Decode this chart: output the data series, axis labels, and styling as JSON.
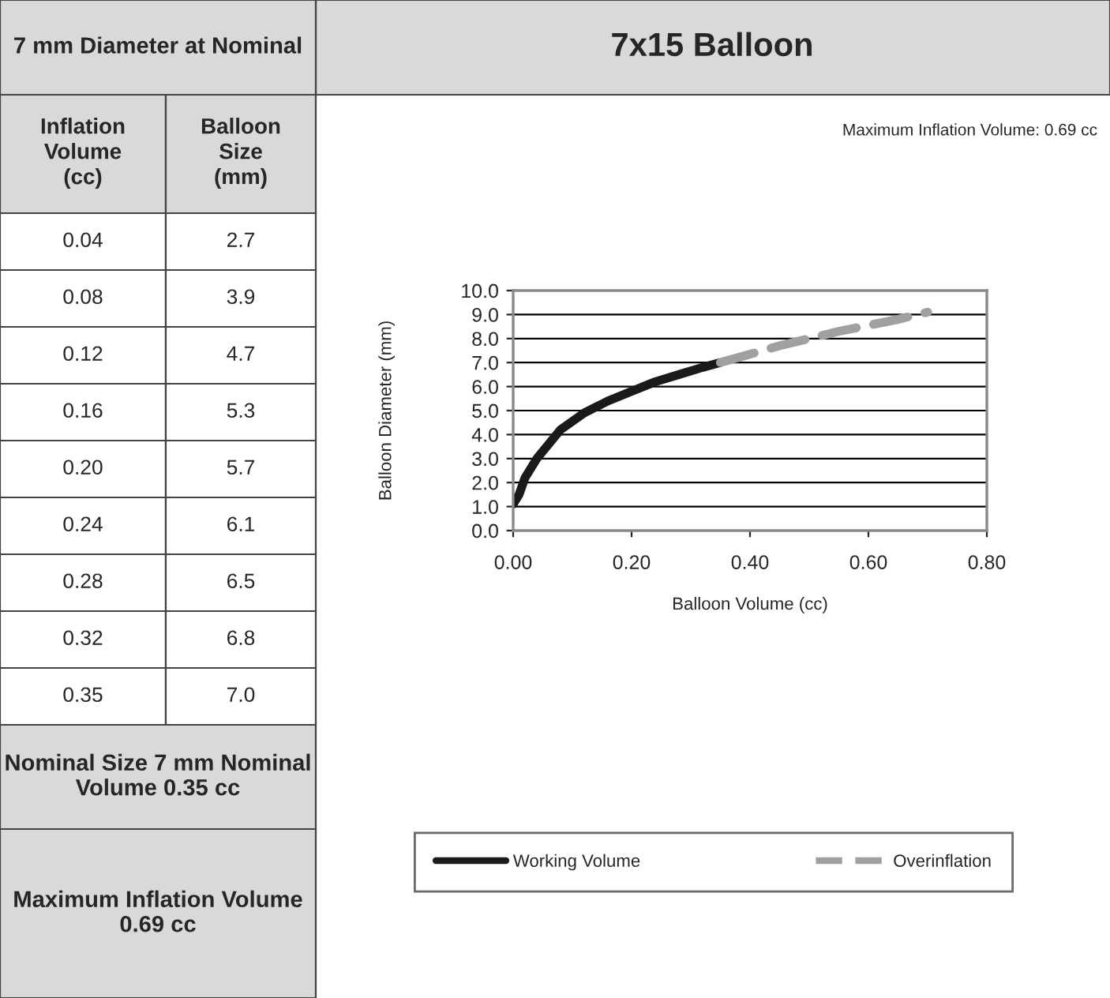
{
  "chart_data": {
    "type": "line",
    "title": "7x15 Balloon",
    "xlabel": "Balloon Volume (cc)",
    "ylabel": "Balloon Diameter (mm)",
    "series": [
      {
        "name": "Working Volume",
        "color": "#1a1a1a",
        "line_style": "solid",
        "x": [
          0.0,
          0.01,
          0.02,
          0.04,
          0.06,
          0.08,
          0.12,
          0.16,
          0.2,
          0.24,
          0.28,
          0.32,
          0.35
        ],
        "values": [
          1.1,
          1.5,
          2.2,
          3.0,
          3.6,
          4.2,
          4.9,
          5.4,
          5.8,
          6.2,
          6.5,
          6.8,
          7.0
        ]
      },
      {
        "name": "Overinflation",
        "color": "#a0a0a0",
        "line_style": "dashed",
        "x": [
          0.35,
          0.45,
          0.55,
          0.65,
          0.7
        ],
        "values": [
          7.0,
          7.7,
          8.3,
          8.8,
          9.1
        ]
      }
    ],
    "xlim": [
      0,
      0.8
    ],
    "xticks": [
      {
        "value": 0,
        "label": "0.00"
      },
      {
        "value": 0.2,
        "label": "0.20"
      },
      {
        "value": 0.4,
        "label": "0.40"
      },
      {
        "value": 0.6,
        "label": "0.60"
      },
      {
        "value": 0.8,
        "label": "0.80"
      }
    ],
    "ylim": [
      0,
      10
    ],
    "yticks": [
      {
        "value": 0,
        "label": "0.0"
      },
      {
        "value": 1,
        "label": "1.0"
      },
      {
        "value": 2,
        "label": "2.0"
      },
      {
        "value": 3,
        "label": "3.0"
      },
      {
        "value": 4,
        "label": "4.0"
      },
      {
        "value": 5,
        "label": "5.0"
      },
      {
        "value": 6,
        "label": "6.0"
      },
      {
        "value": 7,
        "label": "7.0"
      },
      {
        "value": 8,
        "label": "8.0"
      },
      {
        "value": 9,
        "label": "9.0"
      },
      {
        "value": 10,
        "label": "10.0"
      }
    ],
    "grid": "y",
    "legend": "bottom",
    "marker": "none",
    "annotations": [
      "Maximum Inflation Volume: 0.69 cc",
      "7 mm Diameter at Nominal",
      "Inflation Volume (cc)",
      "Balloon Size (mm)",
      "0.04",
      "2.7",
      "0.08",
      "3.9",
      "0.12",
      "4.7",
      "0.16",
      "5.3",
      "0.20",
      "5.7",
      "0.24",
      "6.1",
      "0.28",
      "6.5",
      "0.32",
      "6.8",
      "0.35",
      "7.0",
      "Nominal Size 7 mm Nominal Volume 0.35 cc",
      "Maximum Inflation Volume 0.69 cc"
    ]
  }
}
